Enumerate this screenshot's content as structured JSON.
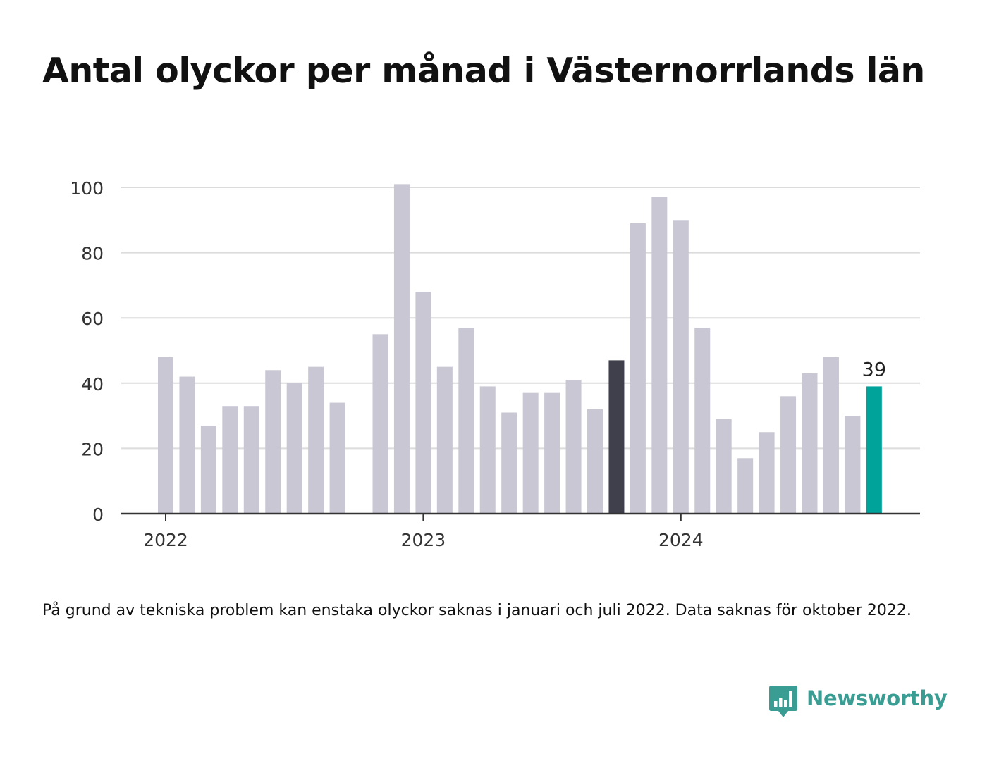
{
  "title": "Antal olyckor per månad i Västernorrlands län",
  "footnote": "På grund av tekniska problem kan enstaka olyckor saknas i januari och juli 2022. Data saknas för oktober 2022.",
  "brand": {
    "name": "Newsworthy",
    "icon": "bar-chart-speech-bubble-icon",
    "color": "#3a9d94"
  },
  "colors": {
    "default_bar": "#c8c7d3",
    "previous_year_same_month": "#40404c",
    "latest": "#00a39a",
    "gridline": "#dcdcdc",
    "axis": "#333333"
  },
  "chart_data": {
    "type": "bar",
    "title": "Antal olyckor per månad i Västernorrlands län",
    "xlabel": "",
    "ylabel": "",
    "ylim": [
      0,
      100
    ],
    "yticks": [
      0,
      20,
      40,
      60,
      80,
      100
    ],
    "xticks": [
      {
        "label": "2022",
        "index": 0
      },
      {
        "label": "2023",
        "index": 12
      },
      {
        "label": "2024",
        "index": 24
      }
    ],
    "grid": true,
    "categories": [
      "2022-01",
      "2022-02",
      "2022-03",
      "2022-04",
      "2022-05",
      "2022-06",
      "2022-07",
      "2022-08",
      "2022-09",
      "2022-10",
      "2022-11",
      "2022-12",
      "2023-01",
      "2023-02",
      "2023-03",
      "2023-04",
      "2023-05",
      "2023-06",
      "2023-07",
      "2023-08",
      "2023-09",
      "2023-10",
      "2023-11",
      "2023-12",
      "2024-01",
      "2024-02",
      "2024-03",
      "2024-04",
      "2024-05",
      "2024-06",
      "2024-07",
      "2024-08",
      "2024-09",
      "2024-10"
    ],
    "values": [
      48,
      42,
      27,
      33,
      33,
      44,
      40,
      45,
      34,
      null,
      55,
      101,
      68,
      45,
      57,
      39,
      31,
      37,
      37,
      41,
      32,
      47,
      89,
      97,
      90,
      57,
      29,
      17,
      25,
      36,
      43,
      48,
      30,
      39
    ],
    "highlight": [
      {
        "index": 21,
        "color_key": "previous_year_same_month"
      },
      {
        "index": 33,
        "color_key": "latest",
        "label": "39"
      }
    ]
  }
}
